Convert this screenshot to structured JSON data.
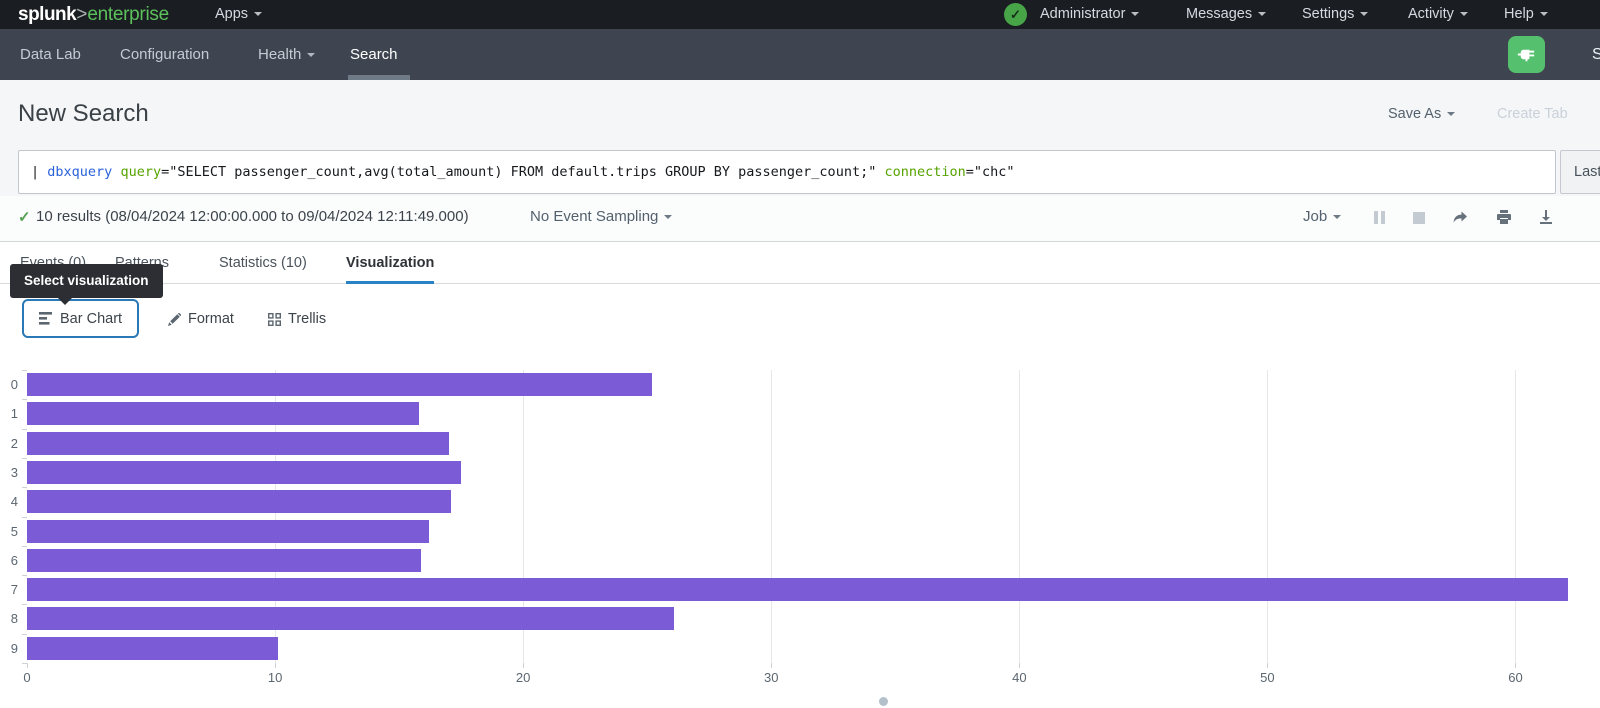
{
  "topbar": {
    "logo": {
      "part1": "splunk",
      "separator": ">",
      "part2": "enterprise"
    },
    "apps": {
      "label": "Apps"
    },
    "menus": [
      {
        "label": "Administrator"
      },
      {
        "label": "Messages"
      },
      {
        "label": "Settings"
      },
      {
        "label": "Activity"
      },
      {
        "label": "Help"
      }
    ]
  },
  "appnav": {
    "items": [
      {
        "label": "Data Lab"
      },
      {
        "label": "Configuration"
      },
      {
        "label": "Health"
      },
      {
        "label": "Search"
      }
    ],
    "app_icon": "db-connect-plug-icon",
    "app_name_partial": "S"
  },
  "header": {
    "title": "New Search",
    "save_as": "Save As",
    "create_table_partial": "Create Tab"
  },
  "searchbar": {
    "query_segments": [
      {
        "t": "| ",
        "c": "plain"
      },
      {
        "t": "dbxquery",
        "c": "command"
      },
      {
        "t": " ",
        "c": "plain"
      },
      {
        "t": "query",
        "c": "keyword"
      },
      {
        "t": "=",
        "c": "plain"
      },
      {
        "t": "\"SELECT passenger_count,avg(total_amount) FROM default.trips GROUP BY passenger_count;\"",
        "c": "plain"
      },
      {
        "t": " ",
        "c": "plain"
      },
      {
        "t": "connection",
        "c": "keyword"
      },
      {
        "t": "=",
        "c": "plain"
      },
      {
        "t": "\"chc\"",
        "c": "plain"
      }
    ],
    "time_range_partial": "Last"
  },
  "results": {
    "check_mark": "✓",
    "summary": "10 results (08/04/2024 12:00:00.000 to 09/04/2024 12:11:49.000)",
    "sampling": "No Event Sampling",
    "job_label": "Job"
  },
  "tabs": [
    {
      "label": "Events (0)"
    },
    {
      "label": "Patterns"
    },
    {
      "label": "Statistics (10)"
    },
    {
      "label": "Visualization",
      "active": true
    }
  ],
  "tooltip": {
    "text": "Select visualization"
  },
  "viz_controls": {
    "chart_type": "Bar Chart",
    "format": "Format",
    "trellis": "Trellis"
  },
  "chart_data": {
    "type": "bar",
    "orientation": "horizontal",
    "title": "",
    "xlabel": "",
    "ylabel": "",
    "categories": [
      "0",
      "1",
      "2",
      "3",
      "4",
      "5",
      "6",
      "7",
      "8",
      "9"
    ],
    "values": [
      25.2,
      15.8,
      17.0,
      17.5,
      17.1,
      16.2,
      15.9,
      62.1,
      26.1,
      10.1
    ],
    "xlim": [
      0,
      62.6
    ],
    "xticks": [
      0,
      10,
      20,
      30,
      40,
      50,
      60
    ],
    "grid": "vertical-gridlines-on",
    "legend": "none",
    "bar_color": "#7b5cd6"
  },
  "colors": {
    "brand_green": "#5cc05c",
    "status_green": "#47a447",
    "bar_purple": "#7b5cd6",
    "focus_border_blue": "#2a78b6",
    "tab_underline_blue": "#2882c4",
    "topbar_bg": "#1a1d21",
    "navbar_bg": "#3e4550"
  }
}
